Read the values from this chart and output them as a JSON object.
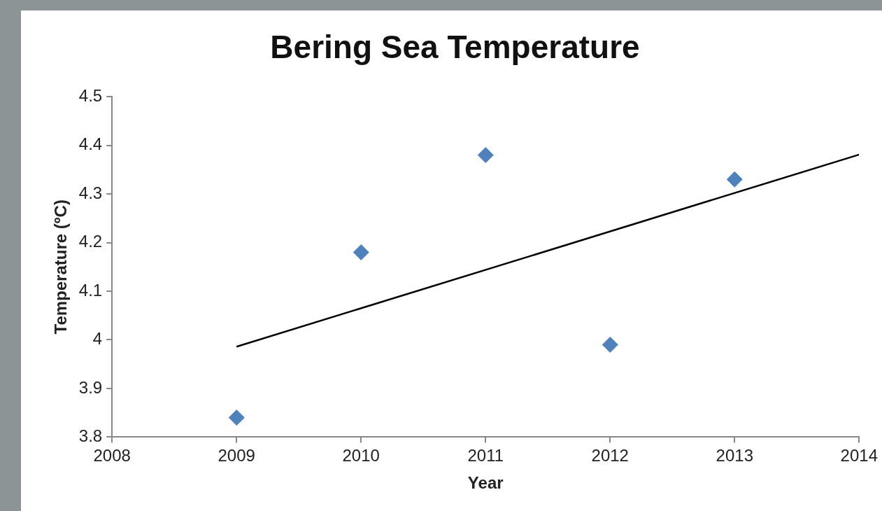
{
  "chart_data": {
    "type": "scatter",
    "title": "Bering Sea Temperature",
    "xlabel": "Year",
    "ylabel": "Temperature (ºC)",
    "xlim": [
      2008,
      2014
    ],
    "xticks": [
      2008,
      2009,
      2010,
      2011,
      2012,
      2013,
      2014
    ],
    "ylim": [
      3.8,
      4.5
    ],
    "yticks": [
      3.8,
      3.9,
      4,
      4.1,
      4.2,
      4.3,
      4.4,
      4.5
    ],
    "grid": false,
    "legend": false,
    "series": [
      {
        "color": "#4f81bd",
        "marker": "diamond",
        "x": [
          2009,
          2010,
          2011,
          2012,
          2013
        ],
        "values": [
          3.84,
          4.18,
          4.38,
          3.99,
          4.33
        ]
      },
      {
        "type": "line",
        "color": "#000000",
        "marker": "none",
        "line_style": "solid",
        "x": [
          2009,
          2014
        ],
        "values": [
          3.986,
          4.381
        ]
      }
    ]
  }
}
